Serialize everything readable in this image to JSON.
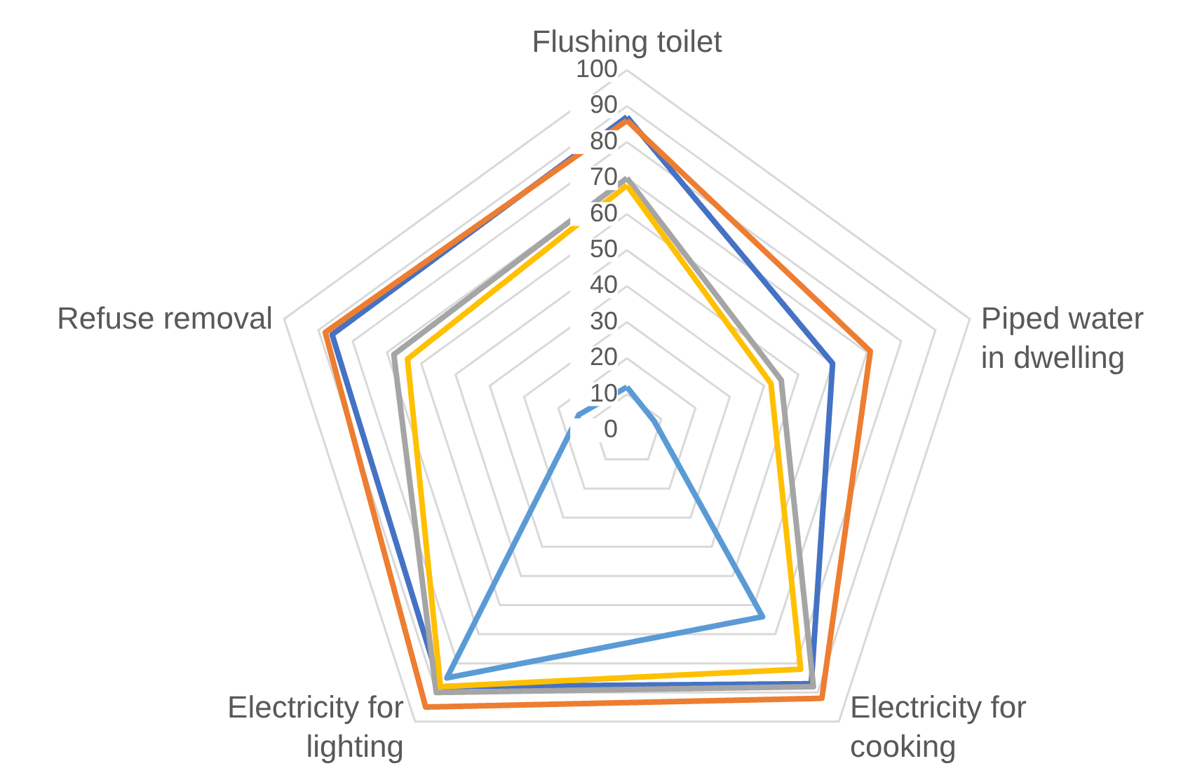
{
  "chart_data": {
    "type": "radar",
    "categories": [
      "Flushing toilet",
      "Piped water\nin dwelling",
      "Electricity for\ncooking",
      "Electricity for\nlighting",
      "Refuse removal"
    ],
    "series": [
      {
        "color": "#4472c4",
        "values": [
          87,
          60,
          87,
          88,
          86
        ]
      },
      {
        "color": "#ed7d31",
        "values": [
          86,
          71,
          92,
          95,
          88
        ]
      },
      {
        "color": "#a5a5a5",
        "values": [
          70,
          45,
          88,
          90,
          68
        ]
      },
      {
        "color": "#ffc000",
        "values": [
          68,
          42,
          82,
          88,
          64
        ]
      },
      {
        "color": "#5b9bd5",
        "values": [
          12,
          8,
          64,
          85,
          14
        ]
      }
    ],
    "ylim": [
      0,
      100
    ],
    "yticks": [
      0,
      10,
      20,
      30,
      40,
      50,
      60,
      70,
      80,
      90,
      100
    ],
    "grid": true,
    "marker": "none",
    "line_style": "solid"
  }
}
